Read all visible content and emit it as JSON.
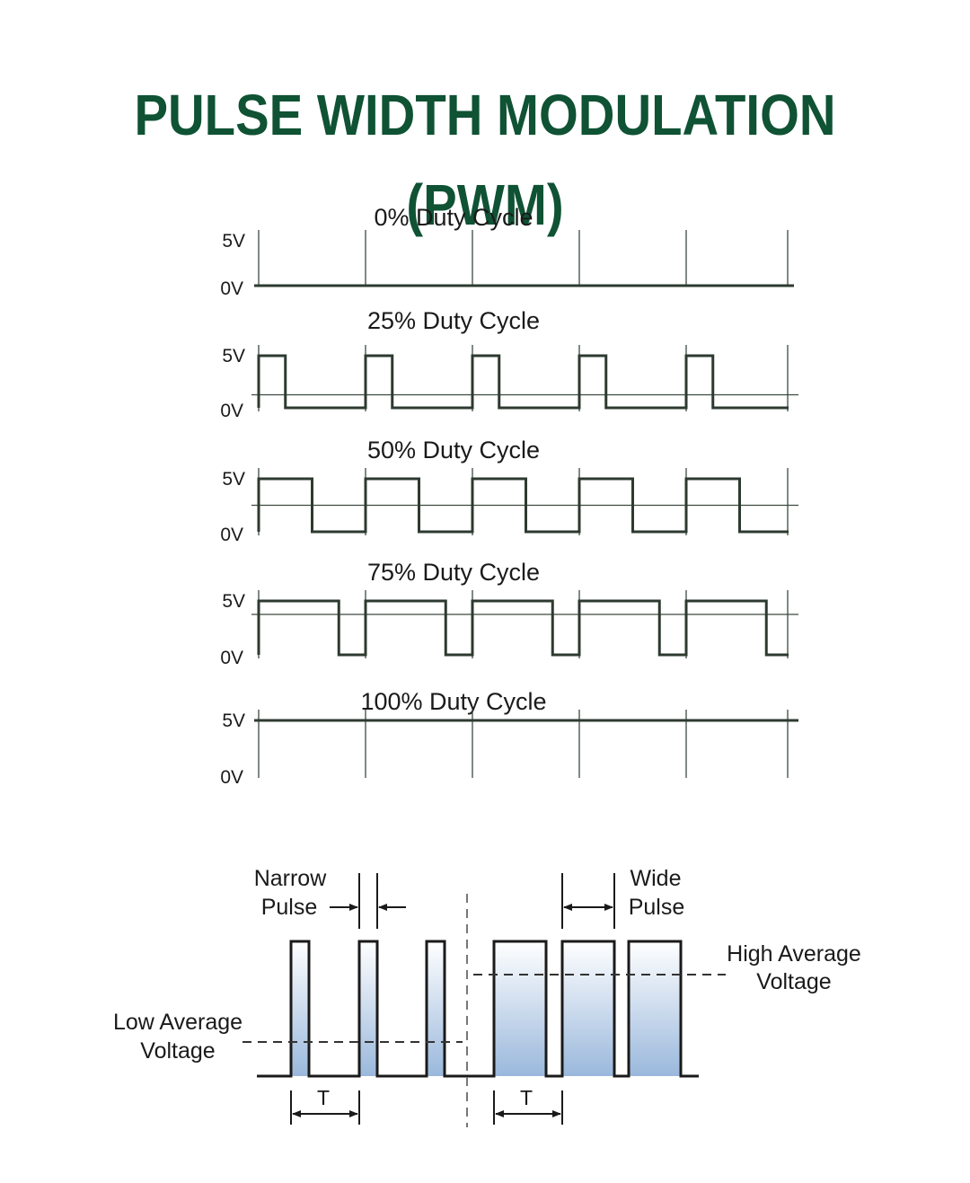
{
  "title": "PULSE WIDTH MODULATION (PWM)",
  "colors": {
    "title": "#0f5234",
    "wave_stroke": "#2d3a30",
    "gridline": "#3c4a40",
    "fill_gradient_top": "#ffffff",
    "fill_gradient_bottom": "#9ab8dc"
  },
  "duty_cycle_panels": [
    {
      "label": "0% Duty Cycle",
      "duty": 0,
      "high_label": "5V",
      "low_label": "0V"
    },
    {
      "label": "25% Duty Cycle",
      "duty": 0.25,
      "high_label": "5V",
      "low_label": "0V"
    },
    {
      "label": "50% Duty Cycle",
      "duty": 0.5,
      "high_label": "5V",
      "low_label": "0V"
    },
    {
      "label": "75% Duty Cycle",
      "duty": 0.75,
      "high_label": "5V",
      "low_label": "0V"
    },
    {
      "label": "100% Duty Cycle",
      "duty": 1,
      "high_label": "5V",
      "low_label": "0V"
    }
  ],
  "comparison": {
    "narrow_label_line1": "Narrow",
    "narrow_label_line2": "Pulse",
    "wide_label_line1": "Wide",
    "wide_label_line2": "Pulse",
    "low_avg_line1": "Low Average",
    "low_avg_line2": "Voltage",
    "high_avg_line1": "High Average",
    "high_avg_line2": "Voltage",
    "period_symbol": "T"
  }
}
